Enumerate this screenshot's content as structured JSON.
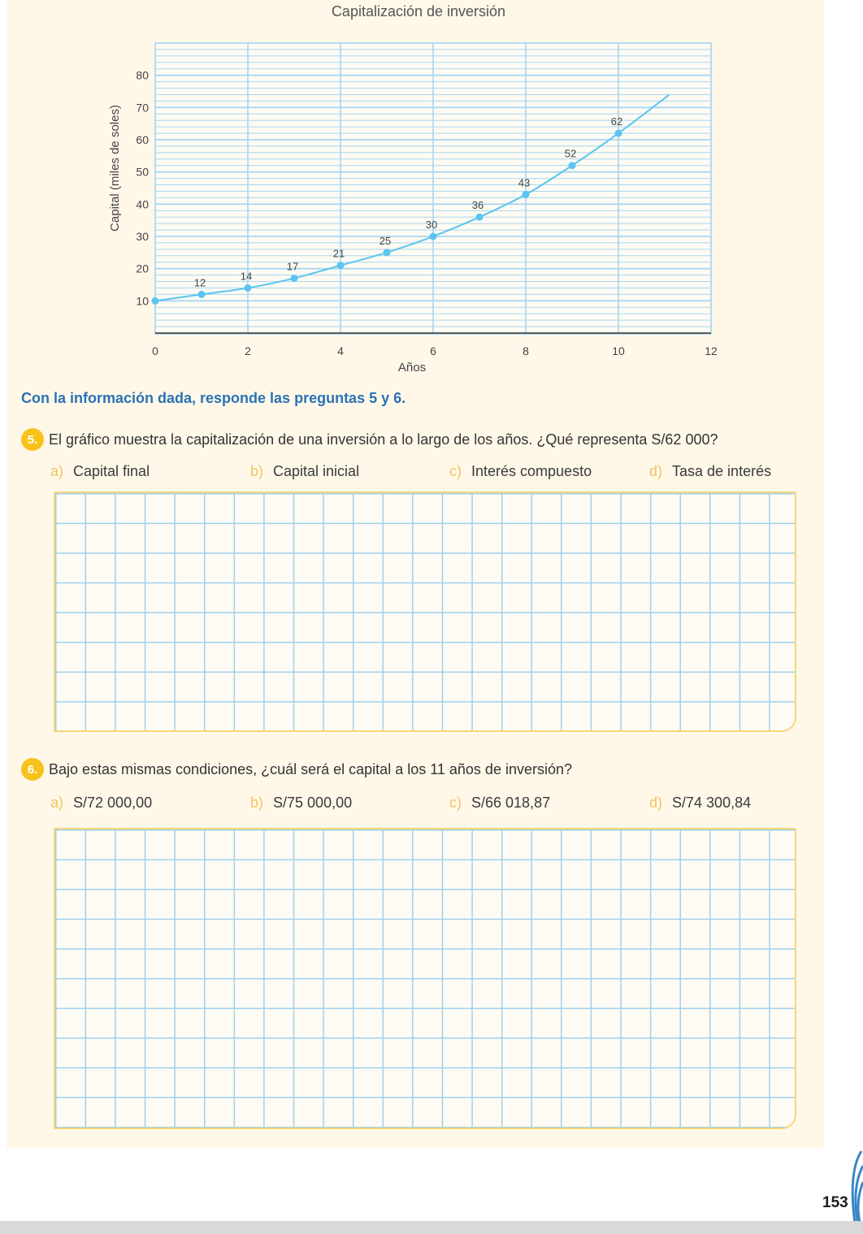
{
  "chart_data": {
    "type": "line",
    "title": "Capitalización de inversión",
    "xlabel": "Años",
    "ylabel": "Capital (miles de soles)",
    "xlim": [
      0,
      12
    ],
    "ylim": [
      0,
      90
    ],
    "x_ticks": [
      0,
      2,
      4,
      6,
      8,
      10,
      12
    ],
    "y_ticks": [
      10,
      20,
      30,
      40,
      50,
      60,
      70,
      80
    ],
    "grid": true,
    "x": [
      0,
      1,
      2,
      3,
      4,
      5,
      6,
      7,
      8,
      9,
      10
    ],
    "values": [
      10,
      12,
      14,
      17,
      21,
      25,
      30,
      36,
      43,
      52,
      62
    ],
    "labels": [
      "",
      "12",
      "14",
      "17",
      "21",
      "25",
      "30",
      "36",
      "43",
      "52",
      "62"
    ],
    "curve_extends_to_x": 11.1,
    "curve_end_value": 74,
    "color": "#5bc4f0"
  },
  "instruction": "Con la información dada, responde las preguntas 5 y 6.",
  "q5": {
    "number": "5.",
    "text": "El gráfico muestra la capitalización de una inversión a lo largo de los años. ¿Qué representa S/62 000?",
    "options": [
      {
        "letter": "a)",
        "text": "Capital final"
      },
      {
        "letter": "b)",
        "text": "Capital inicial"
      },
      {
        "letter": "c)",
        "text": "Interés compuesto"
      },
      {
        "letter": "d)",
        "text": "Tasa de interés"
      }
    ]
  },
  "q6": {
    "number": "6.",
    "text": "Bajo estas mismas condiciones, ¿cuál será el capital a los 11 años de inversión?",
    "options": [
      {
        "letter": "a)",
        "text": "S/72 000,00"
      },
      {
        "letter": "b)",
        "text": "S/75 000,00"
      },
      {
        "letter": "c)",
        "text": "S/66 018,87"
      },
      {
        "letter": "d)",
        "text": "S/74 300,84"
      }
    ]
  },
  "page_number": "153",
  "colors": {
    "accent_yellow": "#f7c21b",
    "accent_blue": "#2a72b5",
    "panel_bg": "#fff8e9"
  }
}
